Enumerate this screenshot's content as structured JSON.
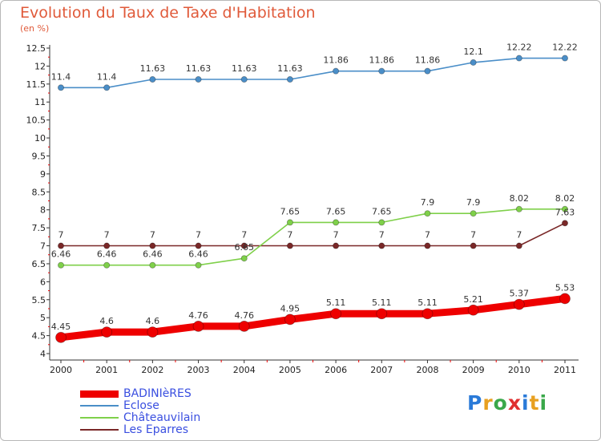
{
  "title": "Evolution du Taux de Taxe d'Habitation",
  "subtitle": "(en %)",
  "logo_text": "Proxiti",
  "chart_data": {
    "type": "line",
    "title": "Evolution du Taux de Taxe d'Habitation",
    "ylabel": "(en %)",
    "xlabel": "",
    "x": [
      "2000",
      "2001",
      "2002",
      "2003",
      "2004",
      "2005",
      "2006",
      "2007",
      "2008",
      "2009",
      "2010",
      "2011"
    ],
    "ylim": [
      4,
      12.5
    ],
    "yticks": [
      "4",
      "4.5",
      "5",
      "5.5",
      "6",
      "6.5",
      "7",
      "7.5",
      "8",
      "8.5",
      "9",
      "9.5",
      "10",
      "10.5",
      "11",
      "11.5",
      "12",
      "12.5"
    ],
    "grid": false,
    "legend": "bottom-left",
    "series": [
      {
        "name": "BADINIèRES",
        "color": "#ee0000",
        "values": [
          4.45,
          4.6,
          4.6,
          4.76,
          4.76,
          4.95,
          5.11,
          5.11,
          5.11,
          5.21,
          5.37,
          5.53
        ],
        "labels": [
          "4.45",
          "4.6",
          "4.6",
          "4.76",
          "4.76",
          "4.95",
          "5.11",
          "5.11",
          "5.11",
          "5.21",
          "5.37",
          "5.53"
        ]
      },
      {
        "name": "Eclose",
        "color": "#4a8ec8",
        "values": [
          11.4,
          11.4,
          11.63,
          11.63,
          11.63,
          11.63,
          11.86,
          11.86,
          11.86,
          12.1,
          12.22,
          12.22
        ],
        "labels": [
          "11.4",
          "11.4",
          "11.63",
          "11.63",
          "11.63",
          "11.63",
          "11.86",
          "11.86",
          "11.86",
          "12.1",
          "12.22",
          "12.22"
        ]
      },
      {
        "name": "Châteauvilain",
        "color": "#7fd04a",
        "values": [
          6.46,
          6.46,
          6.46,
          6.46,
          6.65,
          7.65,
          7.65,
          7.65,
          7.9,
          7.9,
          8.02,
          8.02
        ],
        "labels": [
          "6.46",
          "6.46",
          "6.46",
          "6.46",
          "6.65",
          "7.65",
          "7.65",
          "7.65",
          "7.9",
          "7.9",
          "8.02",
          "8.02"
        ]
      },
      {
        "name": "Les Eparres",
        "color": "#7a2828",
        "values": [
          7,
          7,
          7,
          7,
          7,
          7,
          7,
          7,
          7,
          7,
          7,
          7.63
        ],
        "labels": [
          "7",
          "7",
          "7",
          "7",
          "7",
          "7",
          "7",
          "7",
          "7",
          "7",
          "7",
          "7.63"
        ]
      }
    ]
  }
}
